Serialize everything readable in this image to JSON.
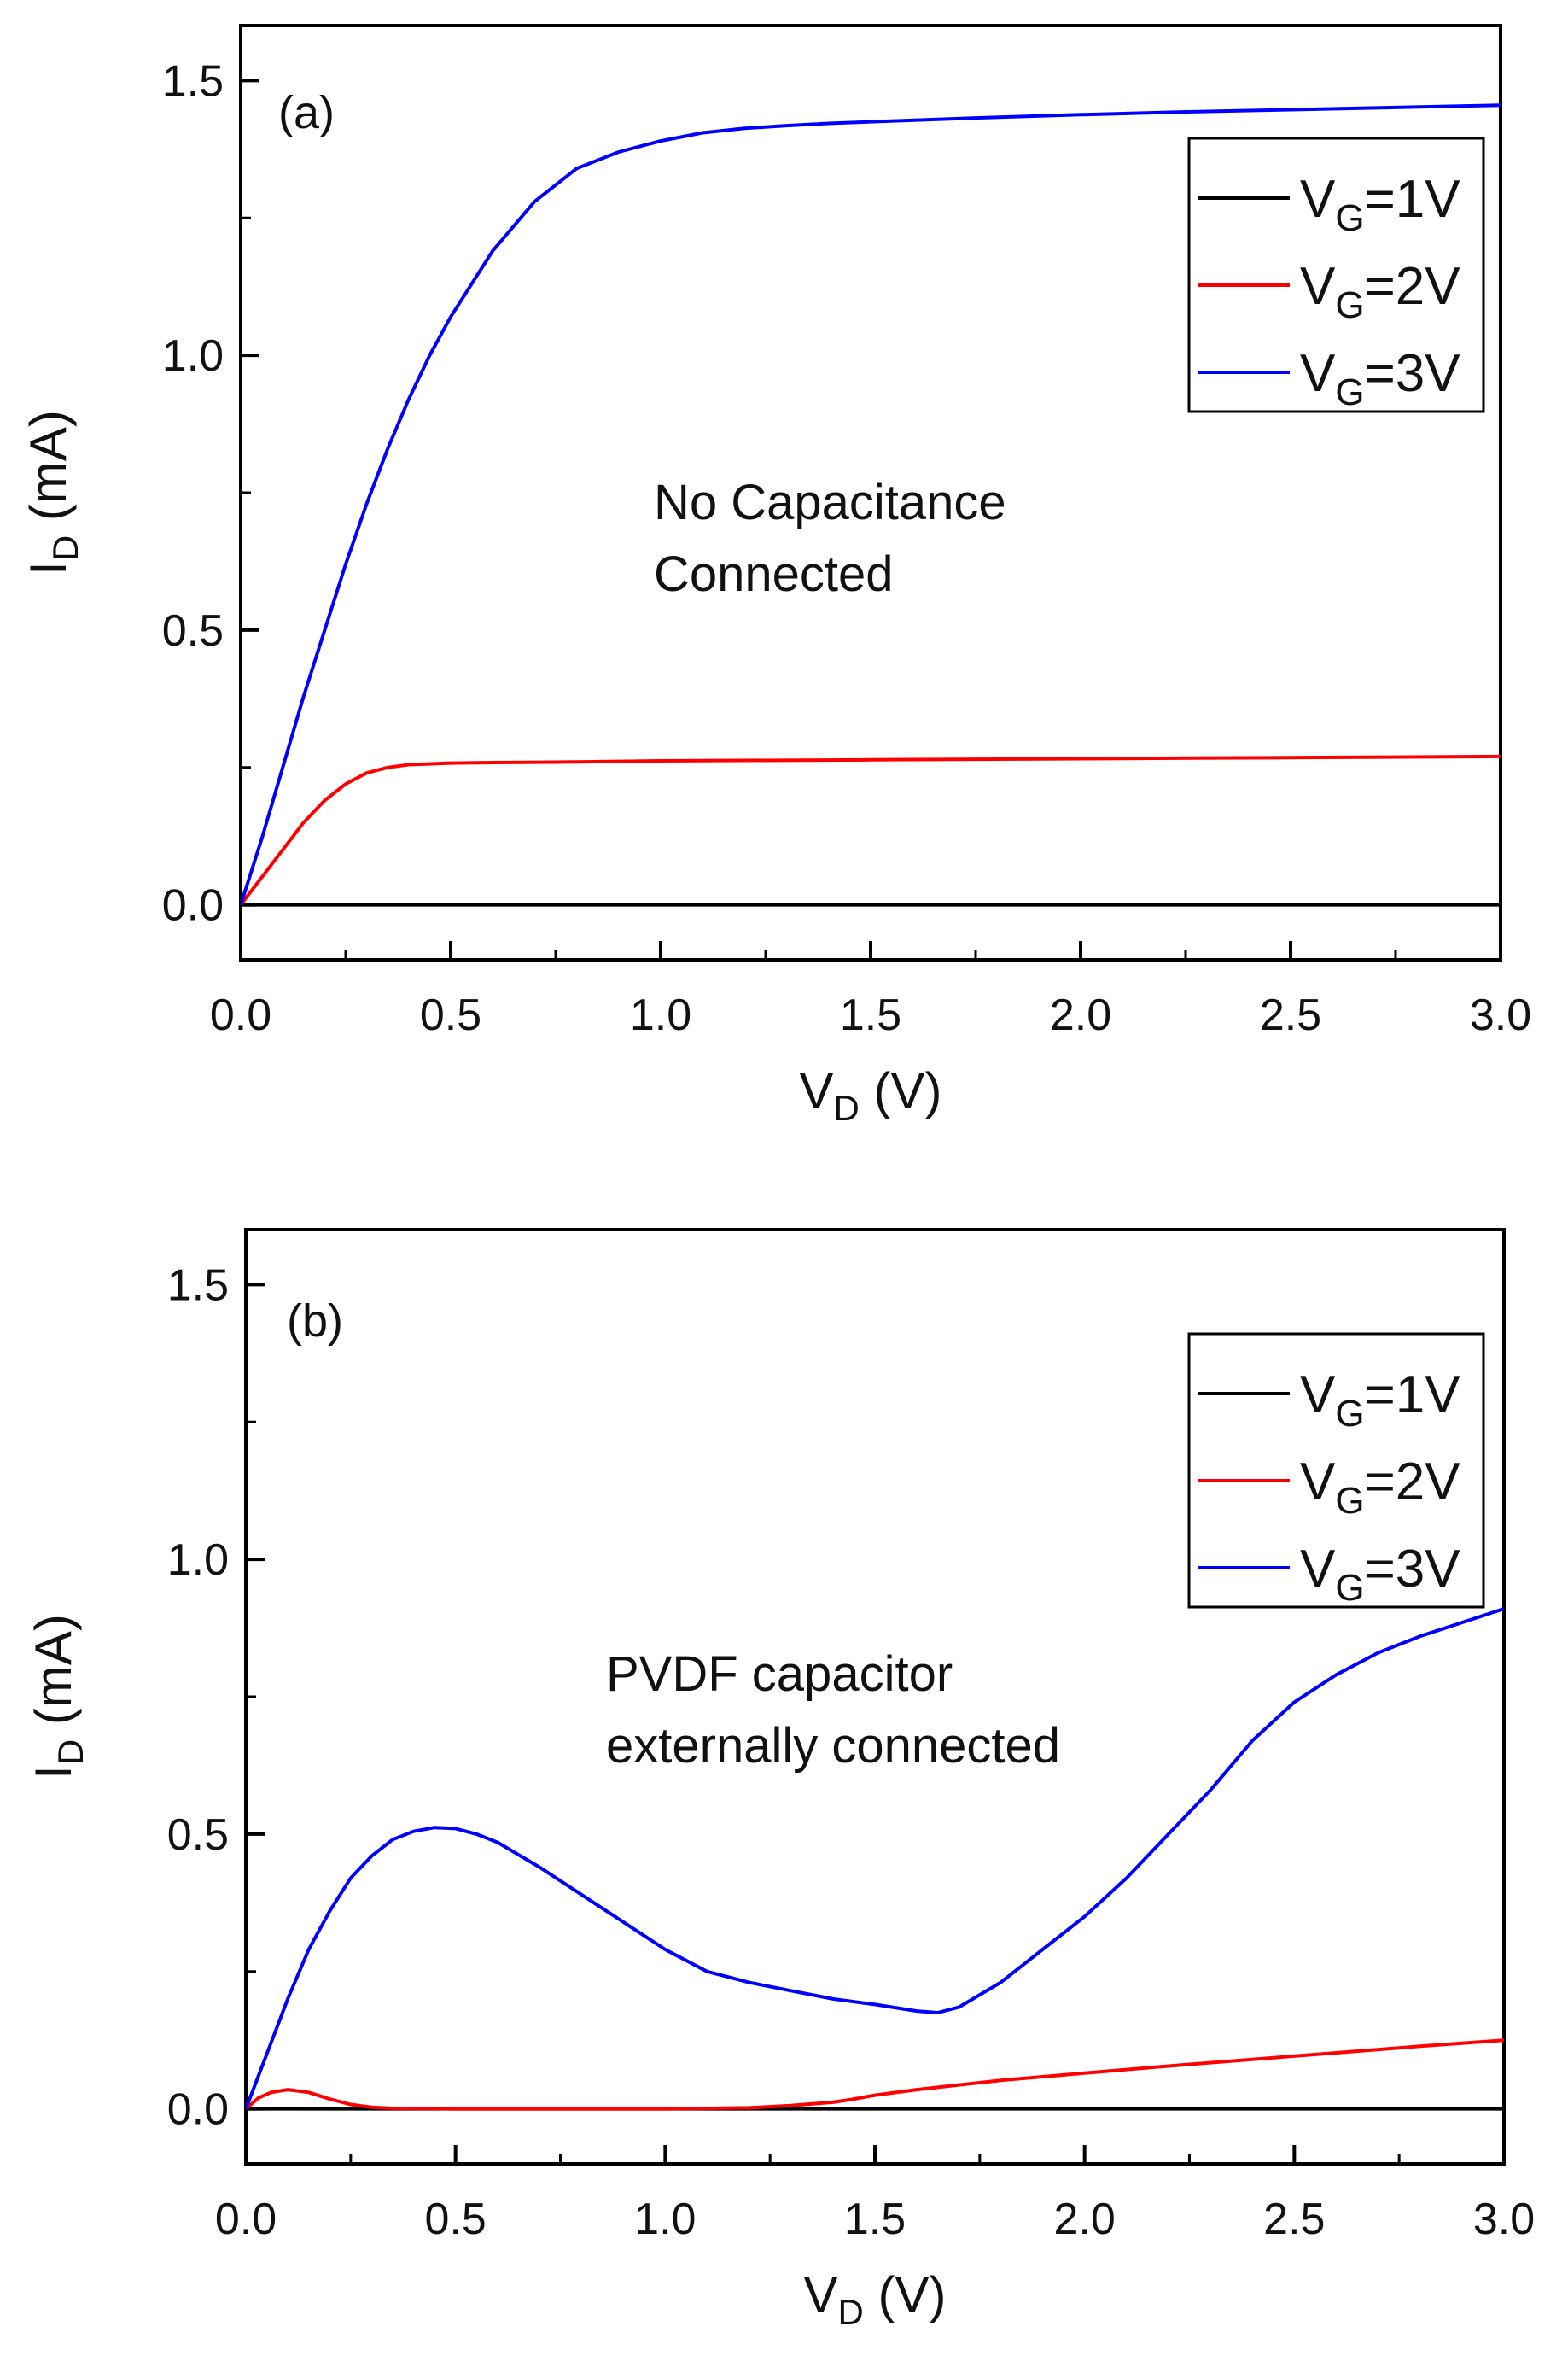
{
  "chart_data": [
    {
      "type": "line",
      "panel_label": "(a)",
      "annotation": [
        "No Capacitance",
        "Connected"
      ],
      "xlabel": {
        "main": "V",
        "sub": "D",
        "unit": " (V)"
      },
      "ylabel": {
        "main": "I",
        "sub": "D",
        "unit": " (mA)"
      },
      "xlim": [
        0,
        3.0
      ],
      "ylim": [
        -0.1,
        1.6
      ],
      "xticks": [
        "0.0",
        "0.5",
        "1.0",
        "1.5",
        "2.0",
        "2.5",
        "3.0"
      ],
      "yticks": [
        "0.0",
        "0.5",
        "1.0",
        "1.5"
      ],
      "legend_position": "top-right",
      "series": [
        {
          "name": {
            "main": "V",
            "sub": "G",
            "rest": "=1V"
          },
          "color": "#000000",
          "x": [
            0,
            3.0
          ],
          "y": [
            0,
            0
          ]
        },
        {
          "name": {
            "main": "V",
            "sub": "G",
            "rest": "=2V"
          },
          "color": "#ff0000",
          "x": [
            0,
            0.05,
            0.1,
            0.15,
            0.2,
            0.25,
            0.3,
            0.35,
            0.4,
            0.5,
            0.6,
            0.8,
            1.0,
            1.5,
            2.0,
            2.5,
            3.0
          ],
          "y": [
            0,
            0.05,
            0.1,
            0.15,
            0.19,
            0.22,
            0.24,
            0.25,
            0.255,
            0.258,
            0.259,
            0.26,
            0.262,
            0.264,
            0.266,
            0.268,
            0.27
          ]
        },
        {
          "name": {
            "main": "V",
            "sub": "G",
            "rest": "=3V"
          },
          "color": "#0000ff",
          "x": [
            0,
            0.05,
            0.1,
            0.15,
            0.2,
            0.25,
            0.3,
            0.35,
            0.4,
            0.45,
            0.5,
            0.6,
            0.7,
            0.8,
            0.9,
            1.0,
            1.1,
            1.2,
            1.3,
            1.4,
            1.5,
            1.75,
            2.0,
            2.25,
            2.5,
            2.75,
            3.0
          ],
          "y": [
            0,
            0.12,
            0.25,
            0.38,
            0.5,
            0.62,
            0.73,
            0.83,
            0.92,
            1.0,
            1.07,
            1.19,
            1.28,
            1.34,
            1.37,
            1.39,
            1.405,
            1.413,
            1.418,
            1.422,
            1.425,
            1.432,
            1.438,
            1.443,
            1.447,
            1.451,
            1.455
          ]
        }
      ]
    },
    {
      "type": "line",
      "panel_label": "(b)",
      "annotation": [
        "PVDF capacitor",
        "externally connected"
      ],
      "xlabel": {
        "main": "V",
        "sub": "D",
        "unit": " (V)"
      },
      "ylabel": {
        "main": "I",
        "sub": "D",
        "unit": " (mA)"
      },
      "xlim": [
        0,
        3.0
      ],
      "ylim": [
        -0.1,
        1.6
      ],
      "xticks": [
        "0.0",
        "0.5",
        "1.0",
        "1.5",
        "2.0",
        "2.5",
        "3.0"
      ],
      "yticks": [
        "0.0",
        "0.5",
        "1.0",
        "1.5"
      ],
      "legend_position": "top-right",
      "series": [
        {
          "name": {
            "main": "V",
            "sub": "G",
            "rest": "=1V"
          },
          "color": "#000000",
          "x": [
            0,
            3.0
          ],
          "y": [
            0,
            0
          ]
        },
        {
          "name": {
            "main": "V",
            "sub": "G",
            "rest": "=2V"
          },
          "color": "#ff0000",
          "x": [
            0,
            0.03,
            0.06,
            0.1,
            0.15,
            0.2,
            0.25,
            0.3,
            0.35,
            0.5,
            1.0,
            1.2,
            1.3,
            1.4,
            1.45,
            1.5,
            1.6,
            1.8,
            2.0,
            2.2,
            2.4,
            2.6,
            2.8,
            3.0
          ],
          "y": [
            0,
            0.02,
            0.03,
            0.035,
            0.03,
            0.018,
            0.008,
            0.003,
            0.001,
            0,
            0,
            0.002,
            0.006,
            0.012,
            0.018,
            0.025,
            0.035,
            0.052,
            0.065,
            0.078,
            0.09,
            0.102,
            0.114,
            0.125
          ]
        },
        {
          "name": {
            "main": "V",
            "sub": "G",
            "rest": "=3V"
          },
          "color": "#0000ff",
          "x": [
            0,
            0.05,
            0.1,
            0.15,
            0.2,
            0.25,
            0.3,
            0.35,
            0.4,
            0.45,
            0.5,
            0.55,
            0.6,
            0.7,
            0.8,
            0.9,
            1.0,
            1.1,
            1.2,
            1.3,
            1.4,
            1.5,
            1.6,
            1.65,
            1.7,
            1.8,
            1.9,
            2.0,
            2.1,
            2.2,
            2.3,
            2.4,
            2.5,
            2.6,
            2.7,
            2.8,
            2.9,
            3.0
          ],
          "y": [
            0,
            0.1,
            0.2,
            0.29,
            0.36,
            0.42,
            0.46,
            0.49,
            0.505,
            0.512,
            0.51,
            0.5,
            0.485,
            0.44,
            0.39,
            0.34,
            0.29,
            0.25,
            0.23,
            0.215,
            0.2,
            0.19,
            0.178,
            0.175,
            0.185,
            0.23,
            0.29,
            0.35,
            0.42,
            0.5,
            0.58,
            0.67,
            0.74,
            0.79,
            0.83,
            0.86,
            0.885,
            0.91
          ]
        }
      ]
    }
  ]
}
